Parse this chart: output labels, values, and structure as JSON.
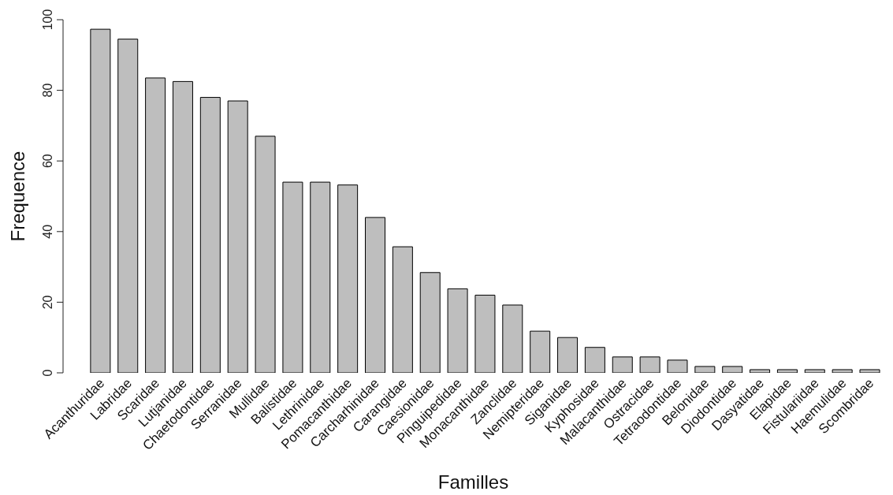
{
  "chart_data": {
    "type": "bar",
    "xlabel": "Familles",
    "ylabel": "Frequence",
    "categories": [
      "Acanthuridae",
      "Labridae",
      "Scaridae",
      "Lutjanidae",
      "Chaetodontidae",
      "Serranidae",
      "Mullidae",
      "Balistidae",
      "Lethrinidae",
      "Pomacanthidae",
      "Carcharhinidae",
      "Carangidae",
      "Caesionidae",
      "Pinguipedidae",
      "Monacanthidae",
      "Zanclidae",
      "Nemipteridae",
      "Siganidae",
      "Kyphosidae",
      "Malacanthidae",
      "Ostracidae",
      "Tetraodontidae",
      "Belonidae",
      "Diodontidae",
      "Dasyatidae",
      "Elapidae",
      "Fistulariidae",
      "Haemulidae",
      "Scombridae"
    ],
    "values": [
      97.3,
      94.5,
      83.5,
      82.5,
      78,
      77,
      67,
      54,
      54,
      53.2,
      44,
      35.7,
      28.4,
      23.8,
      22,
      19.2,
      11.8,
      10,
      7.2,
      4.5,
      4.5,
      3.6,
      1.8,
      1.8,
      0.9,
      0.9,
      0.9,
      0.9,
      0.9
    ],
    "color": "#bebebe",
    "ylim": [
      0,
      100
    ],
    "yticks": [
      0,
      20,
      40,
      60,
      80,
      100
    ],
    "grid": false
  }
}
